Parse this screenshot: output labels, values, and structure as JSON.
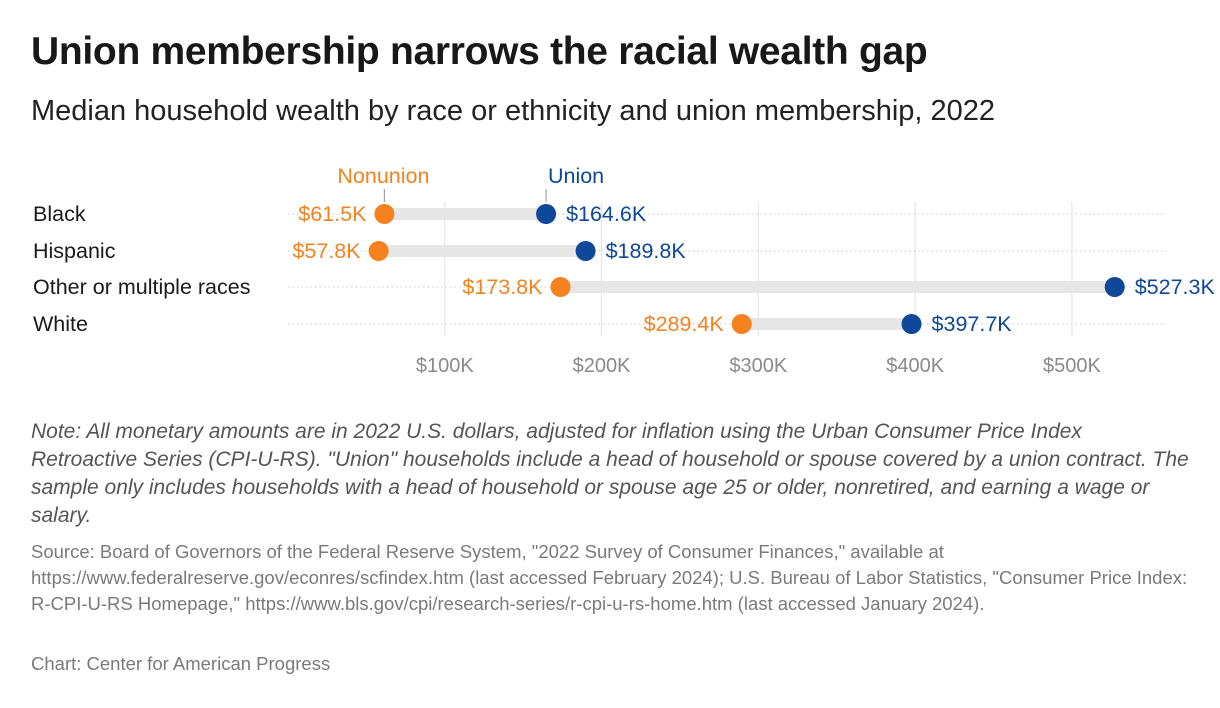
{
  "header": {
    "title": "Union membership narrows the racial wealth gap",
    "subtitle": "Median household wealth by race or ethnicity and union membership, 2022"
  },
  "chart_data": {
    "type": "dot-plot",
    "categories": [
      "Black",
      "Hispanic",
      "Other or multiple races",
      "White"
    ],
    "series": [
      {
        "name": "Nonunion",
        "color": "#f5821f",
        "values": [
          61.5,
          57.8,
          173.8,
          289.4
        ],
        "labels": [
          "$61.5K",
          "$57.8K",
          "$173.8K",
          "$289.4K"
        ]
      },
      {
        "name": "Union",
        "color": "#0f4799",
        "values": [
          164.6,
          189.8,
          527.3,
          397.7
        ],
        "labels": [
          "$164.6K",
          "$189.8K",
          "$527.3K",
          "$397.7K"
        ]
      }
    ],
    "x_axis": {
      "min": 0,
      "max": 560,
      "units": "thousands of 2022 U.S. dollars",
      "ticks": [
        100,
        200,
        300,
        400,
        500
      ],
      "tick_labels": [
        "$100K",
        "$200K",
        "$300K",
        "$400K",
        "$500K"
      ]
    },
    "gridlines": true,
    "legend_placement": "inline above first row"
  },
  "footer": {
    "note": "Note: All monetary amounts are in 2022 U.S. dollars, adjusted for inflation using the Urban Consumer Price Index Retroactive Series (CPI-U-RS). \"Union\" households include a head of household or spouse covered by a union contract. The sample only includes households with a head of household or spouse age 25 or older, nonretired, and earning a wage or salary.",
    "source": "Source: Board of Governors of the Federal Reserve System, \"2022 Survey of Consumer Finances,\" available at https://www.federalreserve.gov/econres/scfindex.htm (last accessed February 2024); U.S. Bureau of Labor Statistics, \"Consumer Price Index: R-CPI-U-RS Homepage,\" https://www.bls.gov/cpi/research-series/r-cpi-u-rs-home.htm (last accessed January 2024).",
    "credit": "Chart: Center for American Progress"
  }
}
